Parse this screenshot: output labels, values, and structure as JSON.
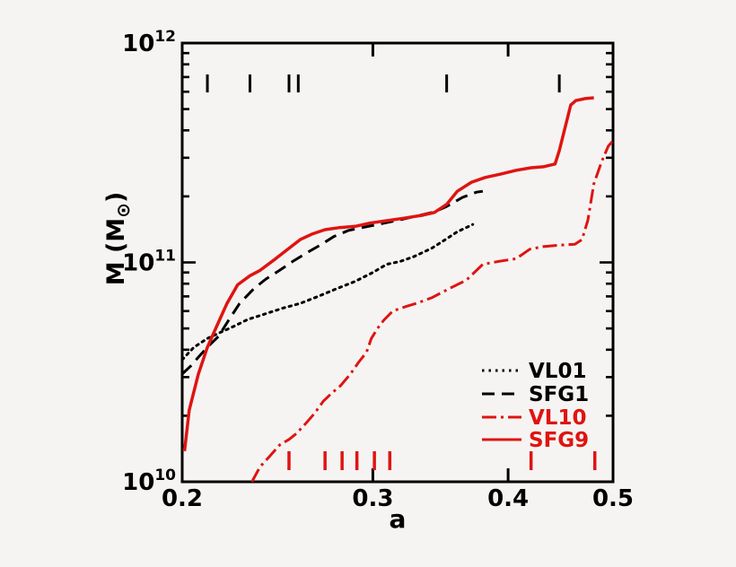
{
  "figure": {
    "background": "#f5f4f2",
    "frame_color": "#000000",
    "accent_red": "#df1411"
  },
  "axes": {
    "xlabel": "a",
    "ylabel_prefix": "M (M",
    "ylabel_symbol": "⊙",
    "ylabel_suffix": ")",
    "x_scale": "log",
    "y_scale": "log",
    "x_range": [
      0.2,
      0.5
    ],
    "y_range": [
      10000000000.0,
      1000000000000.0
    ],
    "x_ticks": [
      {
        "value": 0.2,
        "label": "0.2"
      },
      {
        "value": 0.3,
        "label": "0.3"
      },
      {
        "value": 0.4,
        "label": "0.4"
      },
      {
        "value": 0.5,
        "label": "0.5"
      }
    ],
    "y_ticks": [
      {
        "value": 10000000000.0,
        "base": "10",
        "exp": "10"
      },
      {
        "value": 100000000000.0,
        "base": "10",
        "exp": "11"
      },
      {
        "value": 1000000000000.0,
        "base": "10",
        "exp": "12"
      }
    ]
  },
  "legend": {
    "entries": [
      {
        "label": "VL01",
        "color": "#000000",
        "style": "dotted"
      },
      {
        "label": "SFG1",
        "color": "#000000",
        "style": "dashed"
      },
      {
        "label": "VL10",
        "color": "#df1411",
        "style": "dashdot"
      },
      {
        "label": "SFG9",
        "color": "#df1411",
        "style": "solid"
      }
    ]
  },
  "chart_data": {
    "type": "line",
    "title": "",
    "xlabel": "a",
    "ylabel": "M (M_sun)",
    "xscale": "log",
    "yscale": "log",
    "xlim": [
      0.2,
      0.5
    ],
    "ylim": [
      10000000000.0,
      1000000000000.0
    ],
    "grid": false,
    "legend_position": "lower right",
    "series": [
      {
        "name": "VL01",
        "color": "#000000",
        "style": "dotted",
        "points": [
          [
            0.2,
            36000000000.0
          ],
          [
            0.205,
            41000000000.0
          ],
          [
            0.211,
            45000000000.0
          ],
          [
            0.217,
            48000000000.0
          ],
          [
            0.223,
            51000000000.0
          ],
          [
            0.23,
            55000000000.0
          ],
          [
            0.238,
            58000000000.0
          ],
          [
            0.248,
            62000000000.0
          ],
          [
            0.257,
            65000000000.0
          ],
          [
            0.267,
            70000000000.0
          ],
          [
            0.278,
            76000000000.0
          ],
          [
            0.289,
            82000000000.0
          ],
          [
            0.3,
            90000000000.0
          ],
          [
            0.309,
            98000000000.0
          ],
          [
            0.318,
            101000000000.0
          ],
          [
            0.327,
            106000000000.0
          ],
          [
            0.34,
            116000000000.0
          ],
          [
            0.349,
            126000000000.0
          ],
          [
            0.359,
            138000000000.0
          ],
          [
            0.368,
            146000000000.0
          ],
          [
            0.371,
            149000000000.0
          ]
        ]
      },
      {
        "name": "SFG1",
        "color": "#000000",
        "style": "dashed",
        "points": [
          [
            0.2,
            31000000000.0
          ],
          [
            0.204,
            34000000000.0
          ],
          [
            0.207,
            37000000000.0
          ],
          [
            0.212,
            42000000000.0
          ],
          [
            0.216,
            46000000000.0
          ],
          [
            0.221,
            55000000000.0
          ],
          [
            0.226,
            65000000000.0
          ],
          [
            0.233,
            76000000000.0
          ],
          [
            0.239,
            84000000000.0
          ],
          [
            0.246,
            92000000000.0
          ],
          [
            0.253,
            101000000000.0
          ],
          [
            0.261,
            111000000000.0
          ],
          [
            0.269,
            121000000000.0
          ],
          [
            0.276,
            131000000000.0
          ],
          [
            0.285,
            140000000000.0
          ],
          [
            0.293,
            144000000000.0
          ],
          [
            0.303,
            149000000000.0
          ],
          [
            0.315,
            155000000000.0
          ],
          [
            0.328,
            162000000000.0
          ],
          [
            0.342,
            170000000000.0
          ],
          [
            0.351,
            180000000000.0
          ],
          [
            0.363,
            198000000000.0
          ],
          [
            0.374,
            209000000000.0
          ],
          [
            0.379,
            211000000000.0
          ]
        ]
      },
      {
        "name": "VL10",
        "color": "#df1411",
        "style": "dashdot",
        "points": [
          [
            0.232,
            10000000000.0
          ],
          [
            0.236,
            11700000000.0
          ],
          [
            0.241,
            13100000000.0
          ],
          [
            0.246,
            14700000000.0
          ],
          [
            0.251,
            15600000000.0
          ],
          [
            0.255,
            16600000000.0
          ],
          [
            0.26,
            18400000000.0
          ],
          [
            0.265,
            20500000000.0
          ],
          [
            0.27,
            23300000000.0
          ],
          [
            0.275,
            25400000000.0
          ],
          [
            0.28,
            27400000000.0
          ],
          [
            0.286,
            31000000000.0
          ],
          [
            0.291,
            35000000000.0
          ],
          [
            0.296,
            39000000000.0
          ],
          [
            0.299,
            45000000000.0
          ],
          [
            0.303,
            50000000000.0
          ],
          [
            0.307,
            54500000000.0
          ],
          [
            0.313,
            60000000000.0
          ],
          [
            0.322,
            63000000000.0
          ],
          [
            0.329,
            65000000000.0
          ],
          [
            0.34,
            69000000000.0
          ],
          [
            0.353,
            76000000000.0
          ],
          [
            0.366,
            83000000000.0
          ],
          [
            0.379,
            98000000000.0
          ],
          [
            0.392,
            101000000000.0
          ],
          [
            0.407,
            104000000000.0
          ],
          [
            0.419,
            115000000000.0
          ],
          [
            0.431,
            118000000000.0
          ],
          [
            0.448,
            120000000000.0
          ],
          [
            0.461,
            121000000000.0
          ],
          [
            0.468,
            127000000000.0
          ],
          [
            0.474,
            156000000000.0
          ],
          [
            0.48,
            228000000000.0
          ],
          [
            0.488,
            288000000000.0
          ],
          [
            0.495,
            339000000000.0
          ],
          [
            0.499,
            355000000000.0
          ]
        ]
      },
      {
        "name": "SFG9",
        "color": "#df1411",
        "style": "solid",
        "points": [
          [
            0.201,
            13800000000.0
          ],
          [
            0.203,
            21200000000.0
          ],
          [
            0.207,
            31000000000.0
          ],
          [
            0.211,
            41000000000.0
          ],
          [
            0.214,
            48000000000.0
          ],
          [
            0.217,
            56000000000.0
          ],
          [
            0.22,
            65000000000.0
          ],
          [
            0.225,
            79000000000.0
          ],
          [
            0.231,
            87000000000.0
          ],
          [
            0.236,
            92000000000.0
          ],
          [
            0.244,
            104000000000.0
          ],
          [
            0.251,
            116000000000.0
          ],
          [
            0.257,
            127000000000.0
          ],
          [
            0.264,
            135000000000.0
          ],
          [
            0.271,
            141000000000.0
          ],
          [
            0.279,
            144000000000.0
          ],
          [
            0.289,
            146000000000.0
          ],
          [
            0.298,
            151000000000.0
          ],
          [
            0.309,
            155000000000.0
          ],
          [
            0.32,
            159000000000.0
          ],
          [
            0.333,
            164000000000.0
          ],
          [
            0.342,
            169000000000.0
          ],
          [
            0.351,
            184000000000.0
          ],
          [
            0.359,
            211000000000.0
          ],
          [
            0.37,
            232000000000.0
          ],
          [
            0.381,
            244000000000.0
          ],
          [
            0.394,
            253000000000.0
          ],
          [
            0.407,
            263000000000.0
          ],
          [
            0.42,
            270000000000.0
          ],
          [
            0.431,
            273000000000.0
          ],
          [
            0.442,
            281000000000.0
          ],
          [
            0.446,
            323000000000.0
          ],
          [
            0.452,
            420000000000.0
          ],
          [
            0.457,
            522000000000.0
          ],
          [
            0.462,
            547000000000.0
          ],
          [
            0.471,
            558000000000.0
          ],
          [
            0.48,
            563000000000.0
          ]
        ]
      }
    ],
    "event_marks": {
      "top": {
        "color": "#000000",
        "a_values": [
          0.211,
          0.231,
          0.251,
          0.256,
          0.351,
          0.446
        ]
      },
      "bottom": {
        "color": "#df1411",
        "a_values": [
          0.251,
          0.271,
          0.281,
          0.29,
          0.301,
          0.311,
          0.42,
          0.481
        ]
      }
    }
  }
}
